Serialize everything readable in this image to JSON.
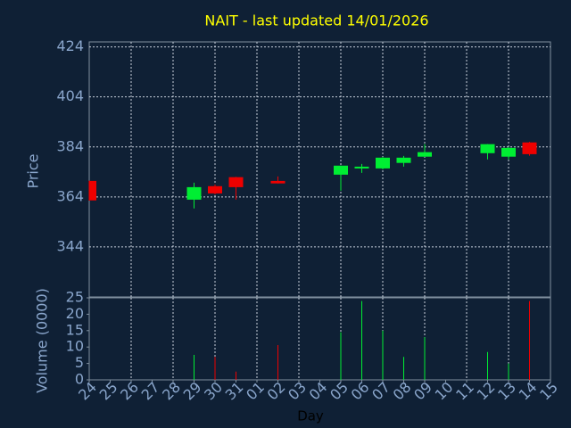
{
  "chart_data": {
    "type": "candlestick",
    "title": "NAIT - last updated 14/01/2026",
    "y_label": "Price",
    "volume_label": "Volume (0000)",
    "x_label": "Day",
    "categories": [
      "24",
      "25",
      "26",
      "27",
      "28",
      "29",
      "30",
      "31",
      "01",
      "02",
      "03",
      "04",
      "05",
      "06",
      "07",
      "08",
      "09",
      "10",
      "11",
      "12",
      "13",
      "14",
      "15"
    ],
    "open": [
      370.4,
      null,
      null,
      null,
      null,
      362.9,
      368.3,
      371.9,
      null,
      370.4,
      null,
      null,
      372.9,
      375.4,
      375.4,
      377.6,
      380.1,
      null,
      null,
      381.5,
      380.1,
      385.8,
      null
    ],
    "high": [
      370.5,
      null,
      null,
      null,
      null,
      369.7,
      369,
      372,
      null,
      372.2,
      null,
      null,
      376.5,
      377.2,
      380,
      380.4,
      385.1,
      null,
      null,
      385.1,
      384,
      386,
      null
    ],
    "low": [
      362.5,
      null,
      null,
      null,
      null,
      359.4,
      365,
      362.9,
      null,
      369.4,
      null,
      null,
      366.5,
      373.6,
      375,
      376.1,
      380,
      null,
      null,
      379,
      379,
      380.5,
      null
    ],
    "close": [
      362.6,
      null,
      null,
      null,
      null,
      367.9,
      365.4,
      367.9,
      null,
      369.4,
      null,
      null,
      376.5,
      376.1,
      379.7,
      379.7,
      381.9,
      null,
      null,
      385.1,
      383.6,
      381.1,
      null
    ],
    "volume": [
      null,
      null,
      null,
      null,
      null,
      7.6,
      7,
      2.5,
      null,
      10.6,
      null,
      null,
      14.5,
      24,
      15,
      7,
      13,
      null,
      null,
      8.5,
      5,
      24,
      null
    ],
    "up_color": "#00ee33",
    "down_color": "#ee0000",
    "ylim": [
      324,
      426
    ],
    "yticks": [
      344,
      364,
      384,
      404,
      424
    ],
    "volume_ylim": [
      0,
      25
    ],
    "volume_yticks": [
      0,
      5,
      10,
      15,
      20,
      25
    ],
    "grid": true
  }
}
